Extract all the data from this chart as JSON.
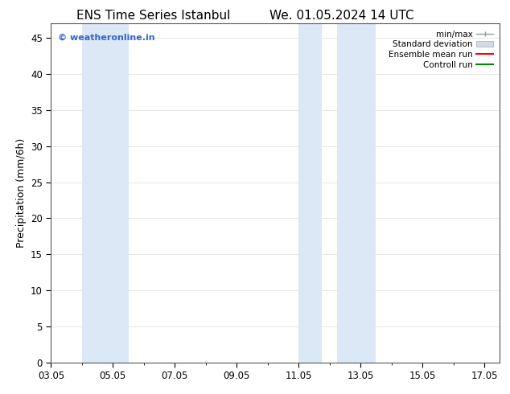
{
  "title_left": "ENS Time Series Istanbul",
  "title_right": "We. 01.05.2024 14 UTC",
  "ylabel": "Precipitation (mm/6h)",
  "ylim": [
    0,
    47
  ],
  "yticks": [
    0,
    5,
    10,
    15,
    20,
    25,
    30,
    35,
    40,
    45
  ],
  "x_min": 3.0,
  "x_max": 17.5,
  "xtick_labels": [
    "03.05",
    "05.05",
    "07.05",
    "09.05",
    "11.05",
    "13.05",
    "15.05",
    "17.05"
  ],
  "xtick_positions_days": [
    3,
    5,
    7,
    9,
    11,
    13,
    15,
    17
  ],
  "shaded_regions": [
    {
      "x_start_day": 4.0,
      "x_end_day": 5.5,
      "color": "#dce8f5"
    },
    {
      "x_start_day": 11.0,
      "x_end_day": 11.75,
      "color": "#dce8f5"
    },
    {
      "x_start_day": 12.25,
      "x_end_day": 13.5,
      "color": "#dce8f5"
    }
  ],
  "legend_entries": [
    {
      "label": "min/max",
      "color": "#aaaaaa",
      "type": "minmax"
    },
    {
      "label": "Standard deviation",
      "color": "#ccddee",
      "type": "fill"
    },
    {
      "label": "Ensemble mean run",
      "color": "#ff0000",
      "type": "line"
    },
    {
      "label": "Controll run",
      "color": "#008800",
      "type": "line"
    }
  ],
  "watermark_text": "© weatheronline.in",
  "watermark_color": "#3366cc",
  "background_color": "#ffffff",
  "plot_bg_color": "#ffffff",
  "grid_color": "#dddddd",
  "tick_label_fontsize": 8.5,
  "axis_label_fontsize": 9,
  "title_fontsize": 11
}
